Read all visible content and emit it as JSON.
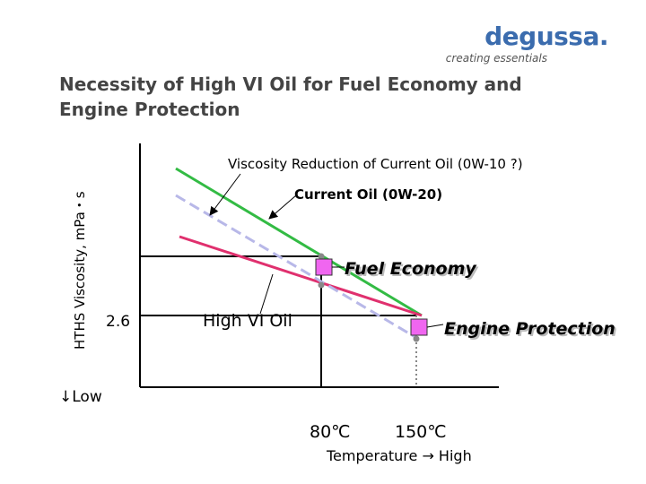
{
  "header": {
    "title": "Necessity of High VI Oil for Fuel Economy and Engine Protection",
    "logo": {
      "name": "degussa.",
      "tagline": "creating essentials",
      "color": "#3b6cae"
    }
  },
  "chart_data": {
    "type": "line",
    "title": "Necessity of High VI Oil for Fuel Economy and Engine Protection",
    "xlabel": "Temperature → High",
    "ylabel": "HTHS Viscosity, mPa・s",
    "low_label": "↓Low",
    "x_ticks": [
      "80℃",
      "150℃"
    ],
    "y_ticks": [
      "2.6"
    ],
    "series": [
      {
        "name": "Current Oil (0W-20)",
        "color": "#33bb44"
      },
      {
        "name": "High VI Oil",
        "color": "#e0306e"
      },
      {
        "name": "Viscosity Reduction of Current Oil (0W-10 ?)",
        "color": "#b8b8e8"
      }
    ],
    "annotations": [
      "Fuel Economy",
      "Engine Protection"
    ],
    "marker_color": "#f066f0"
  }
}
